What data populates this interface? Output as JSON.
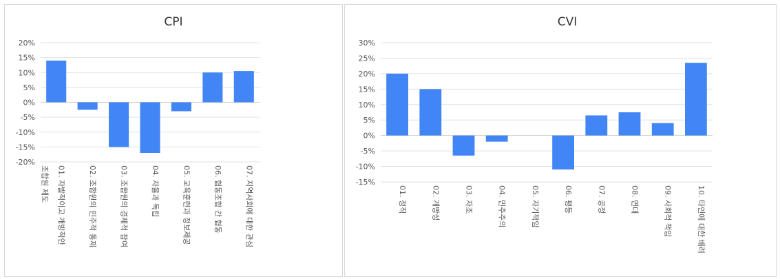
{
  "colors": {
    "bar": "#4285f4",
    "grid": "#e0e0e0",
    "axis": "#cccccc",
    "text": "#555555"
  },
  "chart_data": [
    {
      "type": "bar",
      "title": "CPI",
      "ylim": [
        -20,
        20
      ],
      "yticks": [
        -20,
        -15,
        -10,
        -5,
        0,
        5,
        10,
        15,
        20
      ],
      "ytick_labels": [
        "-20%",
        "-15%",
        "-10%",
        "-5%",
        "0%",
        "5%",
        "10%",
        "15%",
        "20%"
      ],
      "grid": true,
      "categories": [
        [
          "01. 자발적이고 개방적인",
          "조합원 제도"
        ],
        [
          "02. 조합원의 민주적 통제"
        ],
        [
          "03. 조합원의 경제적 참여"
        ],
        [
          "04. 자율과 독립"
        ],
        [
          "05. 교육훈련과 정보제공"
        ],
        [
          "06. 협동조합 간 협동"
        ],
        [
          "07. 지역사회에 대한 관심"
        ]
      ],
      "values": [
        14,
        -2.5,
        -15,
        -17,
        -3,
        10,
        10.5
      ]
    },
    {
      "type": "bar",
      "title": "CVI",
      "ylim": [
        -15,
        30
      ],
      "yticks": [
        -15,
        -10,
        -5,
        0,
        5,
        10,
        15,
        20,
        25,
        30
      ],
      "ytick_labels": [
        "-15%",
        "-10%",
        "-5%",
        "0%",
        "5%",
        "10%",
        "15%",
        "20%",
        "25%",
        "30%"
      ],
      "grid": true,
      "categories": [
        [
          "01. 정직"
        ],
        [
          "02. 개방성"
        ],
        [
          "03. 자조"
        ],
        [
          "04. 민주주의"
        ],
        [
          "05. 자기책임"
        ],
        [
          "06. 평등"
        ],
        [
          "07. 공정"
        ],
        [
          "08. 연대"
        ],
        [
          "09. 사회적 책임"
        ],
        [
          "10. 타인에 대한 배려"
        ]
      ],
      "values": [
        20,
        15,
        -6.5,
        -2,
        0,
        -11,
        6.5,
        7.5,
        4,
        23.5
      ]
    }
  ]
}
